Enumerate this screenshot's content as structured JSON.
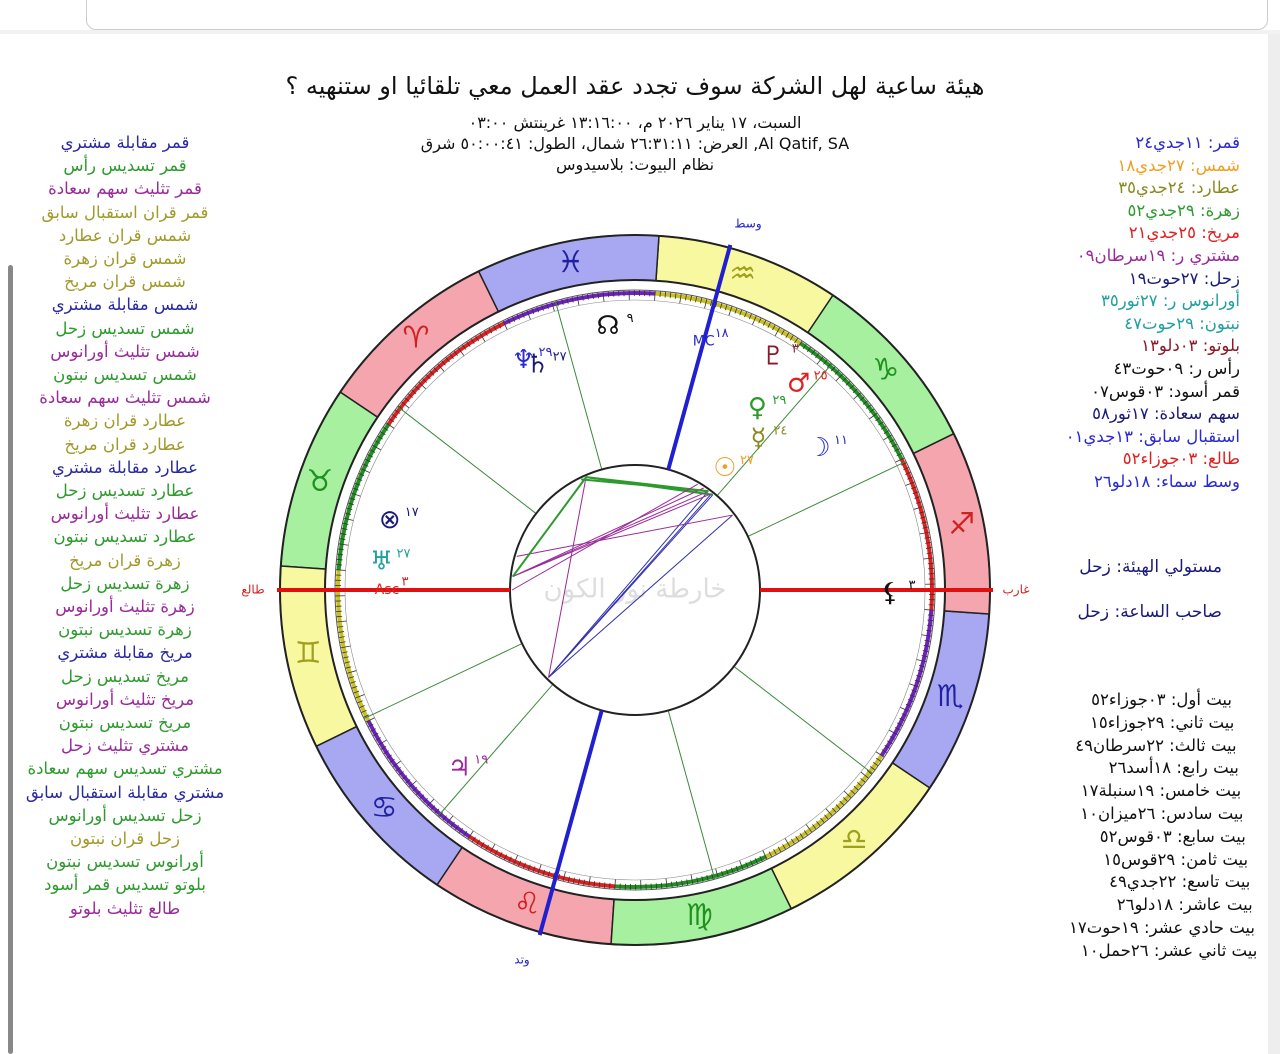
{
  "header": {
    "title": "هيئة ساعية لهل الشركة سوف تجدد عقد العمل معي تلقائيا او ستنهيه ؟",
    "lines": [
      "السبت، ١٧ يناير ٢٠٢٦ م، ١٣:١٦:٠٠ غرينتش ٠٣:٠٠",
      "Al Qatif, SA, العرض: ٢٦:٣١:١١ شمال، الطول: ٥٠:٠٠:٤١ شرق",
      "نظام البيوت: بلاسيدوس"
    ]
  },
  "aspects": [
    {
      "text": "قمر مقابلة مشتري",
      "color": "#2a2aa0"
    },
    {
      "text": "قمر تسديس رأس",
      "color": "#2e9a2e"
    },
    {
      "text": "قمر تثليث سهم سعادة",
      "color": "#9a2a9a"
    },
    {
      "text": "قمر قران استقبال سابق",
      "color": "#a09a2a"
    },
    {
      "text": "شمس قران عطارد",
      "color": "#a09a2a"
    },
    {
      "text": "شمس قران زهرة",
      "color": "#a09a2a"
    },
    {
      "text": "شمس قران مريخ",
      "color": "#a09a2a"
    },
    {
      "text": "شمس مقابلة مشتري",
      "color": "#2a2aa0"
    },
    {
      "text": "شمس تسديس زحل",
      "color": "#2e9a2e"
    },
    {
      "text": "شمس تثليث أورانوس",
      "color": "#9a2a9a"
    },
    {
      "text": "شمس تسديس نبتون",
      "color": "#2e9a2e"
    },
    {
      "text": "شمس تثليث سهم سعادة",
      "color": "#9a2a9a"
    },
    {
      "text": "عطارد قران زهرة",
      "color": "#a09a2a"
    },
    {
      "text": "عطارد قران مريخ",
      "color": "#a09a2a"
    },
    {
      "text": "عطارد مقابلة مشتري",
      "color": "#2a2aa0"
    },
    {
      "text": "عطارد تسديس زحل",
      "color": "#2e9a2e"
    },
    {
      "text": "عطارد تثليث أورانوس",
      "color": "#9a2a9a"
    },
    {
      "text": "عطارد تسديس نبتون",
      "color": "#2e9a2e"
    },
    {
      "text": "زهرة قران مريخ",
      "color": "#a09a2a"
    },
    {
      "text": "زهرة تسديس زحل",
      "color": "#2e9a2e"
    },
    {
      "text": "زهرة تثليث أورانوس",
      "color": "#9a2a9a"
    },
    {
      "text": "زهرة تسديس نبتون",
      "color": "#2e9a2e"
    },
    {
      "text": "مريخ مقابلة مشتري",
      "color": "#2a2aa0"
    },
    {
      "text": "مريخ تسديس زحل",
      "color": "#2e9a2e"
    },
    {
      "text": "مريخ تثليث أورانوس",
      "color": "#9a2a9a"
    },
    {
      "text": "مريخ تسديس نبتون",
      "color": "#2e9a2e"
    },
    {
      "text": "مشتري تثليث زحل",
      "color": "#9a2a9a"
    },
    {
      "text": "مشتري تسديس سهم سعادة",
      "color": "#2e9a2e"
    },
    {
      "text": "مشتري مقابلة استقبال سابق",
      "color": "#2a2aa0"
    },
    {
      "text": "زحل تسديس أورانوس",
      "color": "#2e9a2e"
    },
    {
      "text": "زحل قران نبتون",
      "color": "#a09a2a"
    },
    {
      "text": "أورانوس تسديس نبتون",
      "color": "#2e9a2e"
    },
    {
      "text": "بلوتو تسديس قمر أسود",
      "color": "#2e9a2e"
    },
    {
      "text": "طالع تثليث بلوتو",
      "color": "#9a2a9a"
    }
  ],
  "positions": [
    {
      "text": "قمر: ١١جدي٢٤",
      "color": "#2a2ad0"
    },
    {
      "text": "شمس: ٢٧جدي١٨",
      "color": "#f0a020"
    },
    {
      "text": "عطارد: ٢٤جدي٣٥",
      "color": "#8a8a20"
    },
    {
      "text": "زهرة: ٢٩جدي٥٢",
      "color": "#2e9a2e"
    },
    {
      "text": "مريخ: ٢٥جدي٢١",
      "color": "#e02020"
    },
    {
      "text": "مشتري ر: ١٩سرطان٠٩",
      "color": "#9a2a9a"
    },
    {
      "text": "زحل: ٢٧حوت١٩",
      "color": "#1a1a7a"
    },
    {
      "text": "أورانوس ر: ٢٧ثور٣٥",
      "color": "#20a0a0"
    },
    {
      "text": "نبتون: ٢٩حوت٤٧",
      "color": "#20a0a0"
    },
    {
      "text": "بلوتو: ٠٣دلو١٣",
      "color": "#8a1a2a"
    },
    {
      "text": "رأس ر: ٠٩حوت٤٣",
      "color": "#111111"
    },
    {
      "text": "قمر أسود: ٠٣قوس٠٧",
      "color": "#111111"
    },
    {
      "text": "سهم سعادة: ١٧ثور٥٨",
      "color": "#1a1a7a"
    },
    {
      "text": "استقبال سابق: ١٣جدي٠١",
      "color": "#2a2ad0"
    },
    {
      "text": "طالع: ٠٣جوزاء٥٢",
      "color": "#e02020"
    },
    {
      "text": "وسط سماء: ١٨دلو٢٦",
      "color": "#2a2ad0"
    }
  ],
  "rulers": [
    "مستولي الهيئة: زحل",
    "صاحب الساعة: زحل"
  ],
  "houses": [
    "بيت أول: ٠٣جوزاء٥٢",
    "بيت ثاني: ٢٩جوزاء١٥",
    "بيت ثالث: ٢٢سرطان٤٩",
    "بيت رابع: ١٨أسد٢٦",
    "بيت خامس: ١٩سنبلة١٧",
    "بيت سادس: ٢٦ميزان١٠",
    "بيت سابع: ٠٣قوس٥٢",
    "بيت ثامن: ٢٩قوس١٥",
    "بيت تاسع: ٢٢جدي٤٩",
    "بيت عاشر: ١٨دلو٢٦",
    "بيت حادي عشر: ١٩حوت١٧",
    "بيت ثاني عشر: ٢٦حمل١٠"
  ],
  "wheel": {
    "signs": [
      "♈",
      "♉",
      "♊",
      "♋",
      "♌",
      "♍",
      "♎",
      "♏",
      "♐",
      "♑",
      "♒",
      "♓"
    ],
    "planets": [
      {
        "glyph": "☽",
        "label": "١١",
        "color": "#2a2ad0"
      },
      {
        "glyph": "☉",
        "label": "٢٧",
        "color": "#f0a020"
      },
      {
        "glyph": "☿",
        "label": "٢٤",
        "color": "#8a8a20"
      },
      {
        "glyph": "♀",
        "label": "٢٩",
        "color": "#2e9a2e"
      },
      {
        "glyph": "♂",
        "label": "٢٥",
        "color": "#e02020"
      },
      {
        "glyph": "♃",
        "label": "١٩",
        "color": "#9a2a9a"
      },
      {
        "glyph": "♄",
        "label": "٢٧",
        "color": "#1a1a7a"
      },
      {
        "glyph": "♅",
        "label": "٢٧",
        "color": "#20a0a0"
      },
      {
        "glyph": "♆",
        "label": "٢٩",
        "color": "#2a2ad0"
      },
      {
        "glyph": "♇",
        "label": "٣",
        "color": "#8a1a2a"
      },
      {
        "glyph": "☊",
        "label": "٩",
        "color": "#111111"
      },
      {
        "glyph": "⚸",
        "label": "٣",
        "color": "#111111"
      },
      {
        "glyph": "⊗",
        "label": "١٧",
        "color": "#1a1a7a"
      },
      {
        "glyph": "Asc",
        "label": "٣",
        "color": "#e02020"
      },
      {
        "glyph": "MC",
        "label": "١٨",
        "color": "#2a2ad0"
      }
    ],
    "angles": {
      "asc": "طالع",
      "dsc": "غارب",
      "mc": "وسط",
      "ic": "وتد"
    },
    "watermark": "خارطة نور الكون"
  }
}
